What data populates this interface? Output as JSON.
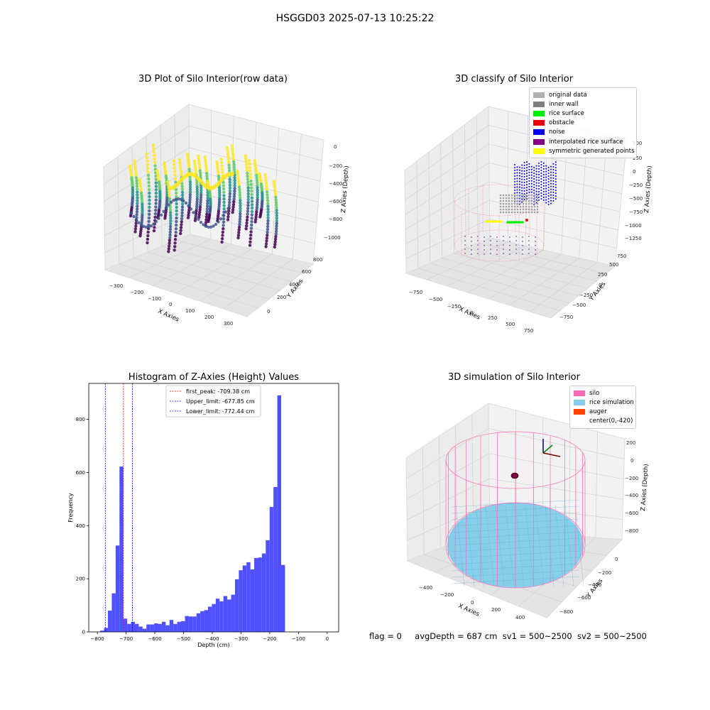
{
  "suptitle": "HSGGD03 2025-07-13 10:25:22",
  "footer": {
    "flag": "flag = 0",
    "avg_depth": "avgDepth = 687 cm",
    "sv1": "sv1 = 500~2500",
    "sv2": "sv2 = 500~2500"
  },
  "colors": {
    "hist_bar": "#5050ff",
    "first_peak_line": "#ff0000",
    "limit_line": "#0000cc",
    "silo": "#ff69b4",
    "rice": "#87ceeb",
    "auger": "#ff4500"
  },
  "panels": {
    "raw": {
      "title": "3D Plot of Silo Interior(row data)",
      "xlabel": "X Axies",
      "ylabel": "Y Axies",
      "zlabel": "Z Axies (Depth)",
      "xticks": [
        "−300",
        "−200",
        "−100",
        "0",
        "100",
        "200",
        "300"
      ],
      "yticks": [
        "0",
        "200",
        "400",
        "600",
        "800"
      ],
      "zticks": [
        "0",
        "−200",
        "−400",
        "−600",
        "−800",
        "−1000"
      ]
    },
    "classify": {
      "title": "3D classify of Silo Interior",
      "xlabel": "X Axies",
      "ylabel": "Y Axies",
      "zlabel": "Z Axies (Depth)",
      "xticks": [
        "−750",
        "−500",
        "−250",
        "0",
        "250",
        "500",
        "750"
      ],
      "yticks": [
        "−750",
        "−500",
        "−250",
        "0",
        "250",
        "500",
        "750"
      ],
      "zticks": [
        "500",
        "250",
        "0",
        "−250",
        "−500",
        "−750",
        "−1000",
        "−1250"
      ],
      "legend": [
        {
          "label": "original data",
          "color": "#b0b0b0"
        },
        {
          "label": "inner wall",
          "color": "#808080"
        },
        {
          "label": "rice surface",
          "color": "#00ee00"
        },
        {
          "label": "obstacle",
          "color": "#ee0000"
        },
        {
          "label": "noise",
          "color": "#0000ee"
        },
        {
          "label": "interpolated rice surface",
          "color": "#800080"
        },
        {
          "label": "symmetric generated points",
          "color": "#ffff00"
        }
      ]
    },
    "simulation": {
      "title": "3D simulation of Silo Interior",
      "xlabel": "X Axies",
      "ylabel": "Y Axies",
      "zlabel": "Z Axies (Depth)",
      "xticks": [
        "−400",
        "−200",
        "0",
        "200",
        "400"
      ],
      "yticks": [
        "0",
        "−200",
        "−400",
        "−600",
        "−800"
      ],
      "zticks": [
        "200",
        "0",
        "−200",
        "−400",
        "−600",
        "−800"
      ],
      "legend": [
        {
          "label": "silo",
          "color": "#ff69b4"
        },
        {
          "label": "rice simulation",
          "color": "#87ceeb"
        },
        {
          "label": "auger",
          "color": "#ff4500"
        },
        {
          "label": "center(0,-420)",
          "color": ""
        }
      ]
    }
  },
  "chart_data": {
    "type": "bar",
    "title": "Histogram of Z-Axies (Height) Values",
    "xlabel": "Depth (cm)",
    "ylabel": "Frequency",
    "xlim": [
      -830,
      40
    ],
    "ylim": [
      0,
      935
    ],
    "xticks": [
      -800,
      -700,
      -600,
      -500,
      -400,
      -300,
      -200,
      -100,
      0
    ],
    "yticks": [
      0,
      200,
      400,
      600,
      800
    ],
    "bin_start": -790,
    "bin_width": 13.4,
    "values": [
      5,
      15,
      80,
      145,
      325,
      622,
      50,
      30,
      38,
      30,
      20,
      12,
      28,
      28,
      32,
      30,
      38,
      25,
      45,
      30,
      38,
      40,
      60,
      58,
      58,
      70,
      78,
      82,
      95,
      105,
      125,
      115,
      135,
      122,
      140,
      198,
      232,
      250,
      262,
      235,
      278,
      280,
      295,
      345,
      470,
      545,
      890,
      252
    ],
    "vlines": [
      {
        "label": "first_peak: -709.38 cm",
        "x": -709.38,
        "color": "#ff0000"
      },
      {
        "label": "Upper_limit: -677.85 cm",
        "x": -677.85,
        "color": "#0000cc"
      },
      {
        "label": "Lower_limit: -772.44 cm",
        "x": -772.44,
        "color": "#0000cc"
      }
    ],
    "legend_position": "top-center"
  }
}
